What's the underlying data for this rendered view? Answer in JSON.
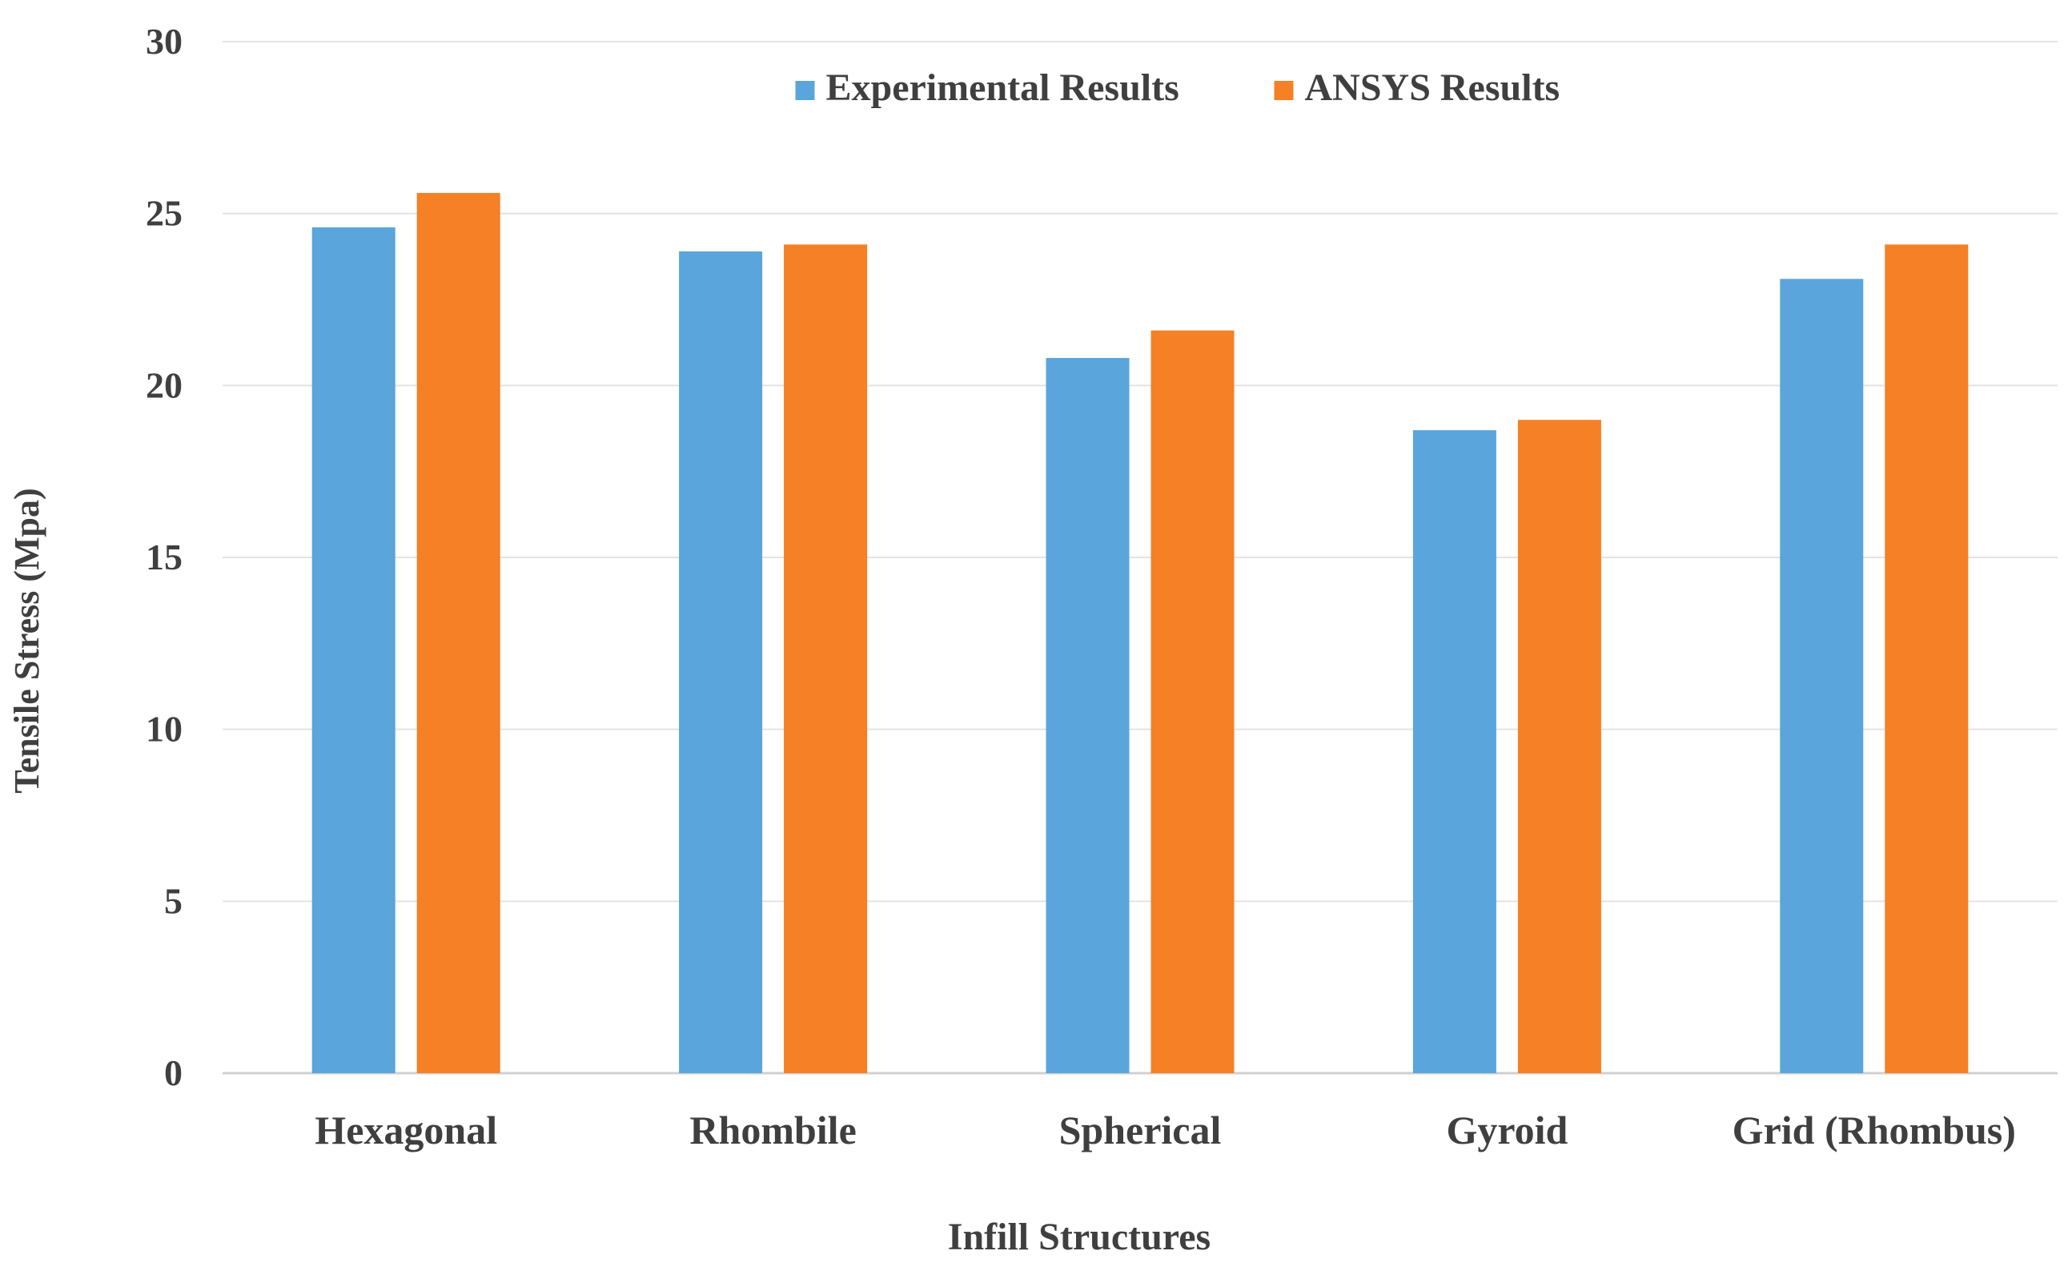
{
  "chart_data": {
    "type": "bar",
    "title": "",
    "xlabel": "Infill Structures",
    "ylabel": "Tensile Stress  (Mpa)",
    "ylim": [
      0,
      30
    ],
    "yticks": [
      0,
      5,
      10,
      15,
      20,
      25,
      30
    ],
    "grid": true,
    "legend_position": "top-center",
    "categories": [
      "Hexagonal",
      "Rhombile",
      "Spherical",
      "Gyroid",
      "Grid (Rhombus)"
    ],
    "series": [
      {
        "name": "Experimental Results",
        "color": "#5aa5dc",
        "values": [
          24.6,
          23.9,
          20.8,
          18.7,
          23.1
        ]
      },
      {
        "name": "ANSYS Results",
        "color": "#f58025",
        "values": [
          25.6,
          24.1,
          21.6,
          19.0,
          24.1
        ]
      }
    ]
  }
}
